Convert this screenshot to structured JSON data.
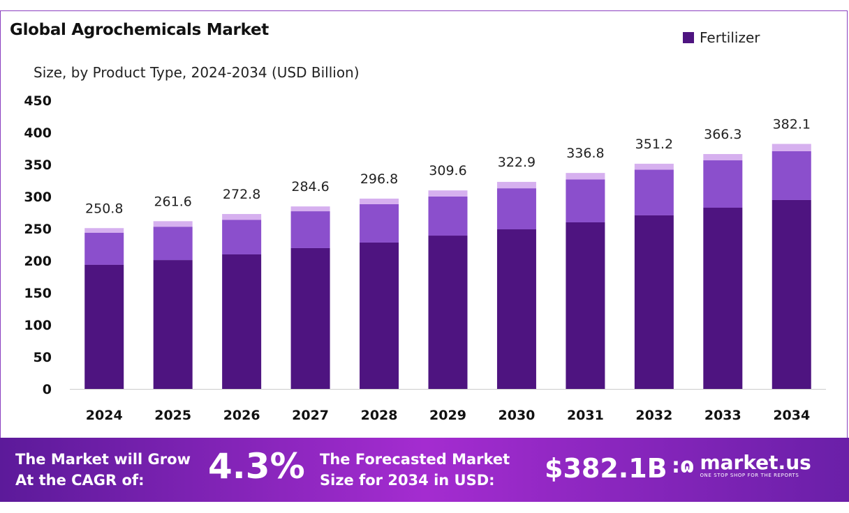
{
  "colors": {
    "fertilizer": "#4e1480",
    "segment2": "#8b4fcc",
    "segment3": "#d6b0ef",
    "footer": "#8a2cc0"
  },
  "chart_data": {
    "type": "bar",
    "stacked": true,
    "title": "Global Agrochemicals Market",
    "subtitle": "Size, by Product Type, 2024-2034 (USD Billion)",
    "xlabel": "",
    "ylabel": "",
    "ylim": [
      0,
      450
    ],
    "yticks": [
      0,
      50,
      100,
      150,
      200,
      250,
      300,
      350,
      400,
      450
    ],
    "categories": [
      "2024",
      "2025",
      "2026",
      "2027",
      "2028",
      "2029",
      "2030",
      "2031",
      "2032",
      "2033",
      "2034"
    ],
    "series": [
      {
        "name": "Fertilizer",
        "values": [
          193.5,
          201.0,
          209.8,
          219.6,
          228.3,
          239.1,
          248.9,
          259.8,
          270.7,
          282.6,
          294.6
        ]
      },
      {
        "values": [
          50.0,
          52.0,
          54.0,
          57.5,
          59.8,
          61.0,
          64.0,
          67.0,
          71.3,
          73.9,
          76.1
        ]
      },
      {
        "values": [
          7.3,
          8.6,
          9.0,
          7.5,
          8.7,
          9.5,
          10.0,
          10.0,
          9.2,
          9.8,
          11.4
        ]
      }
    ],
    "totals": [
      "250.8",
      "261.6",
      "272.8",
      "284.6",
      "296.8",
      "309.6",
      "322.9",
      "336.8",
      "351.2",
      "366.3",
      "382.1"
    ],
    "legend": [
      "Fertilizer"
    ],
    "legend_position": "top-right",
    "grid": false
  },
  "footer": {
    "cagr_text": "The Market will Grow At the CAGR of:",
    "cagr_line1": "The Market will Grow",
    "cagr_line2": "At the CAGR of:",
    "cagr_value": "4.3%",
    "forecast_line1": "The Forecasted Market",
    "forecast_line2": "Size for 2034 in USD:",
    "forecast_value": "$382.1B",
    "brand": "market.us",
    "brand_tagline": "ONE STOP SHOP FOR THE REPORTS"
  }
}
